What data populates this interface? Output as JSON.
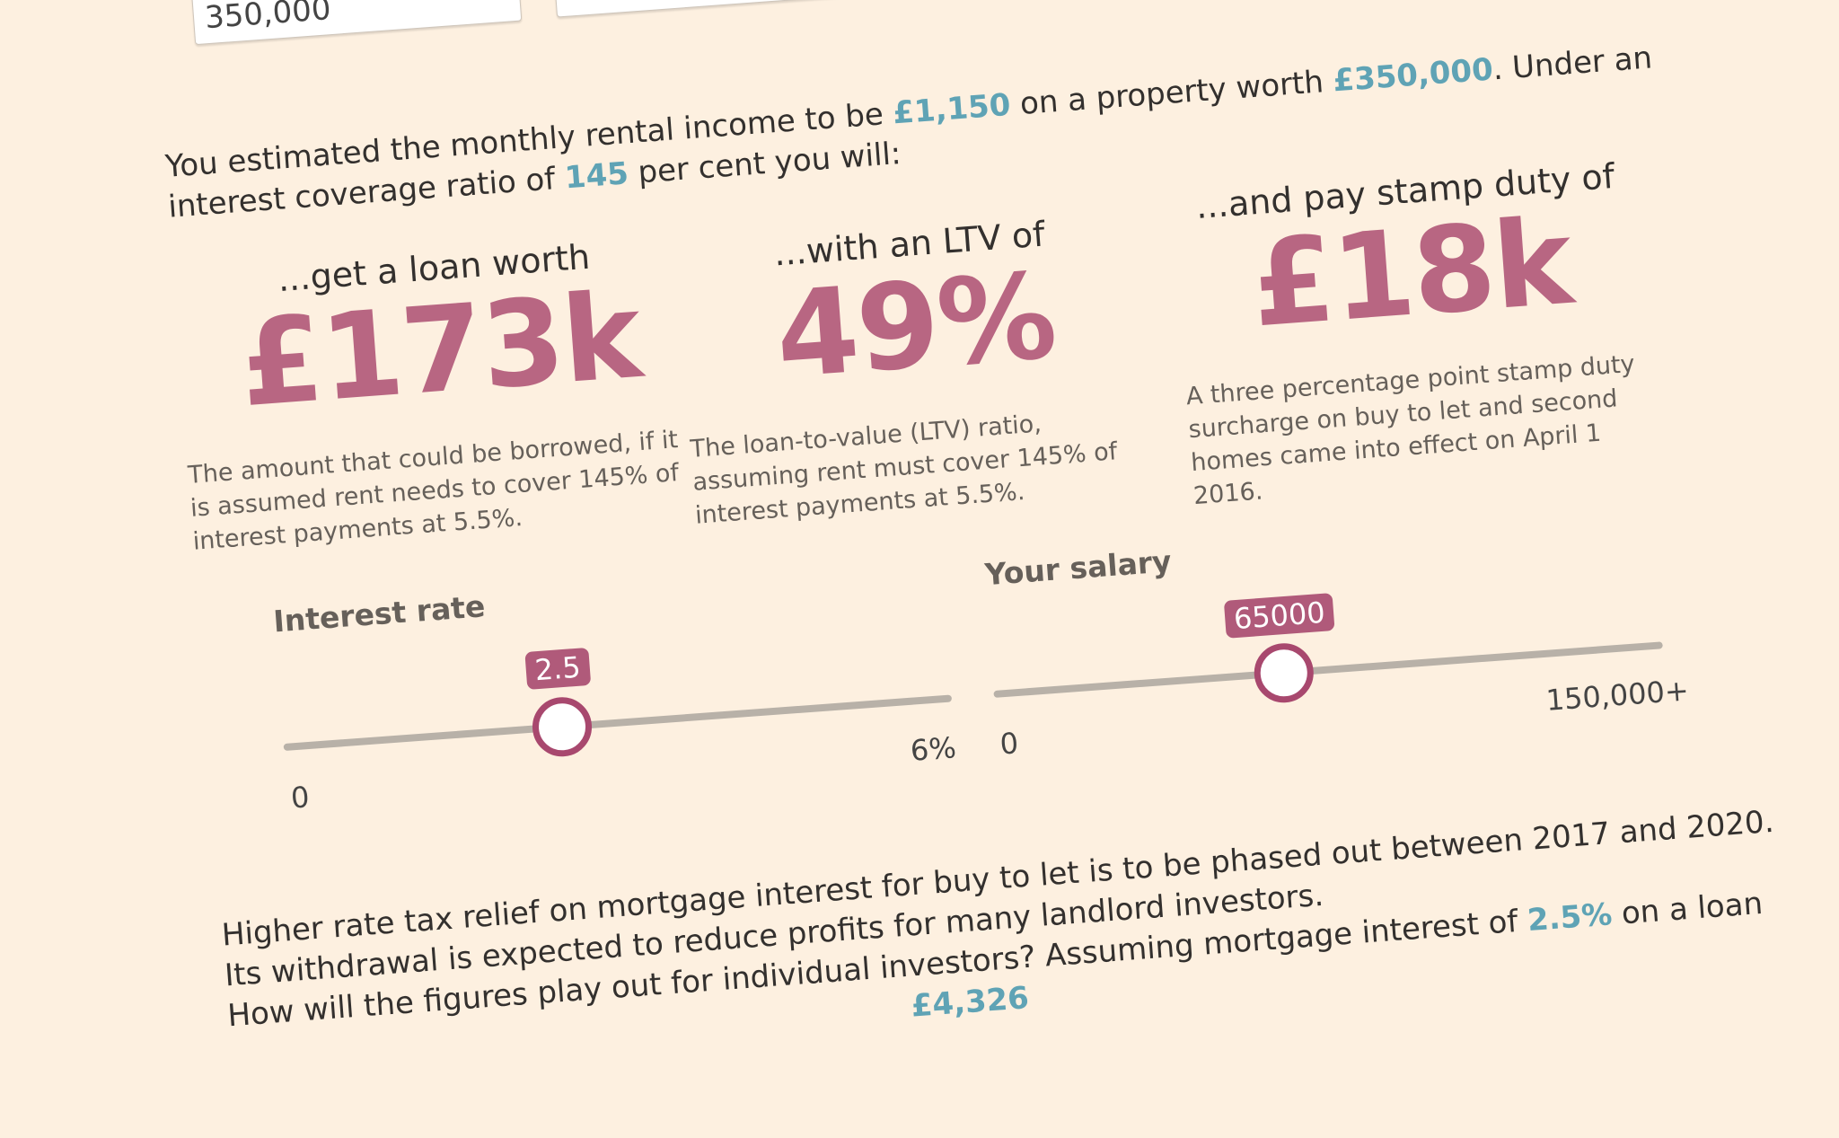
{
  "inputs": {
    "property_value": "350,000"
  },
  "intro": {
    "line1": [
      "You estimated the monthly rental income to be ",
      "£1,150",
      " on a property worth ",
      "£350,000",
      ". Under an"
    ],
    "line2": [
      "interest coverage ratio of ",
      "145",
      " per cent you will:"
    ]
  },
  "results": [
    {
      "heading": "...get a loan worth",
      "value": "£173k",
      "description": "The amount that could be borrowed, if it is assumed rent needs to cover 145% of interest payments at 5.5%."
    },
    {
      "heading": "...with an LTV of",
      "value": "49%",
      "description": "The loan-to-value (LTV) ratio, assuming rent must cover 145% of interest payments at 5.5%."
    },
    {
      "heading": "...and pay stamp duty of",
      "value": "£18k",
      "description": "A three percentage point stamp duty surcharge on buy to let and second homes came into effect on April 1 2016."
    }
  ],
  "sliders": {
    "interest": {
      "label": "Interest rate",
      "value": 2.5,
      "value_label": "2.5",
      "min": 0,
      "max": 6,
      "min_label": "0",
      "max_label": "6%"
    },
    "salary": {
      "label": "Your salary",
      "value": 65000,
      "value_label": "65000",
      "min": 0,
      "max": 150000,
      "min_label": "0",
      "max_label": "150,000+"
    }
  },
  "outro": {
    "line1": "Higher rate tax relief on mortgage interest for buy to let is to be phased out between 2017 and 2020.",
    "line2": "Its withdrawal is expected to reduce profits for many landlord investors.",
    "line3": [
      "How will the figures play out for individual investors? Assuming mortgage interest of ",
      "2.5%",
      " on a loan"
    ],
    "line4_fragment": "£4,326"
  },
  "colors": {
    "background": "#fdf0e0",
    "accent_pink": "#b86682",
    "highlight_teal": "#5fa3b5",
    "slider_track": "#b8b1a8"
  }
}
